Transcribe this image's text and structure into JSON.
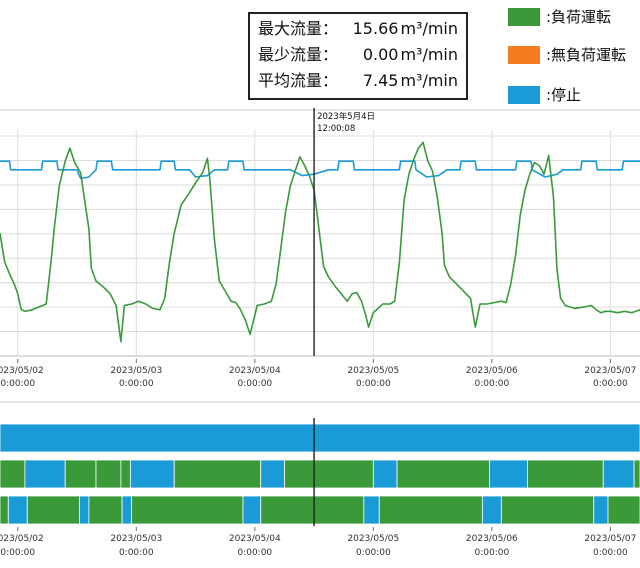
{
  "stats": {
    "max_label": "最大流量：",
    "max_value": "15.66",
    "min_label": "最少流量：",
    "min_value": "0.00",
    "avg_label": "平均流量：",
    "avg_value": "7.45",
    "unit": "m³/min"
  },
  "legend": [
    {
      "label": ":負荷運転",
      "color": "#3a9a3a"
    },
    {
      "label": ":無負荷運転",
      "color": "#f57d1f"
    },
    {
      "label": ":停止",
      "color": "#1a9ad6"
    }
  ],
  "cursor": {
    "date_label": "2023年5月4日",
    "time_label": "12:00:08"
  },
  "colors": {
    "load": "#3a9a3a",
    "unload": "#f57d1f",
    "stop": "#1a9ad6",
    "cursor": "#222222",
    "grid": "#dcdcdc"
  },
  "chart_data": {
    "type": "line",
    "x_ticks": [
      {
        "date": "2023/05/02",
        "time": "0:00:00"
      },
      {
        "date": "2023/05/03",
        "time": "0:00:00"
      },
      {
        "date": "2023/05/04",
        "time": "0:00:00"
      },
      {
        "date": "2023/05/05",
        "time": "0:00:00"
      },
      {
        "date": "2023/05/06",
        "time": "0:00:00"
      },
      {
        "date": "2023/05/07",
        "time": "0:00:00"
      }
    ],
    "x_days": [
      1.85,
      7.25
    ],
    "cursor_day": 4.5,
    "y_range": [
      0,
      15.66
    ],
    "flow_green": [
      [
        1.85,
        8.5
      ],
      [
        1.89,
        6.5
      ],
      [
        1.94,
        5.5
      ],
      [
        1.97,
        5.0
      ],
      [
        2.0,
        4.3
      ],
      [
        2.03,
        3.2
      ],
      [
        2.06,
        3.1
      ],
      [
        2.12,
        3.2
      ],
      [
        2.18,
        3.4
      ],
      [
        2.24,
        3.6
      ],
      [
        2.28,
        6.5
      ],
      [
        2.31,
        9.0
      ],
      [
        2.35,
        11.8
      ],
      [
        2.4,
        13.5
      ],
      [
        2.44,
        14.4
      ],
      [
        2.48,
        13.4
      ],
      [
        2.53,
        12.7
      ],
      [
        2.57,
        10.5
      ],
      [
        2.6,
        8.8
      ],
      [
        2.62,
        6.1
      ],
      [
        2.66,
        5.2
      ],
      [
        2.72,
        4.8
      ],
      [
        2.78,
        4.3
      ],
      [
        2.83,
        3.5
      ],
      [
        2.87,
        1.0
      ],
      [
        2.9,
        3.5
      ],
      [
        2.96,
        3.6
      ],
      [
        3.02,
        3.8
      ],
      [
        3.08,
        3.6
      ],
      [
        3.14,
        3.3
      ],
      [
        3.2,
        3.2
      ],
      [
        3.24,
        4.0
      ],
      [
        3.28,
        6.5
      ],
      [
        3.32,
        8.5
      ],
      [
        3.38,
        10.5
      ],
      [
        3.44,
        11.2
      ],
      [
        3.5,
        12.0
      ],
      [
        3.56,
        12.7
      ],
      [
        3.6,
        13.7
      ],
      [
        3.62,
        12.3
      ],
      [
        3.66,
        8.0
      ],
      [
        3.7,
        5.2
      ],
      [
        3.75,
        4.5
      ],
      [
        3.8,
        3.8
      ],
      [
        3.84,
        3.7
      ],
      [
        3.88,
        3.2
      ],
      [
        3.92,
        2.5
      ],
      [
        3.96,
        1.5
      ],
      [
        4.02,
        3.5
      ],
      [
        4.08,
        3.6
      ],
      [
        4.14,
        3.8
      ],
      [
        4.18,
        5.0
      ],
      [
        4.22,
        7.5
      ],
      [
        4.26,
        10.0
      ],
      [
        4.3,
        11.8
      ],
      [
        4.34,
        12.8
      ],
      [
        4.38,
        13.8
      ],
      [
        4.42,
        13.2
      ],
      [
        4.46,
        12.5
      ],
      [
        4.5,
        11.5
      ],
      [
        4.55,
        8.2
      ],
      [
        4.58,
        6.2
      ],
      [
        4.62,
        5.5
      ],
      [
        4.68,
        4.8
      ],
      [
        4.74,
        4.2
      ],
      [
        4.78,
        3.8
      ],
      [
        4.82,
        4.3
      ],
      [
        4.86,
        4.4
      ],
      [
        4.9,
        3.8
      ],
      [
        4.93,
        3.0
      ],
      [
        4.96,
        2.0
      ],
      [
        5.0,
        3.0
      ],
      [
        5.08,
        3.6
      ],
      [
        5.14,
        3.6
      ],
      [
        5.18,
        3.8
      ],
      [
        5.22,
        6.5
      ],
      [
        5.26,
        10.8
      ],
      [
        5.3,
        12.6
      ],
      [
        5.34,
        13.6
      ],
      [
        5.38,
        14.4
      ],
      [
        5.42,
        14.8
      ],
      [
        5.46,
        13.5
      ],
      [
        5.5,
        12.8
      ],
      [
        5.54,
        11.0
      ],
      [
        5.58,
        8.5
      ],
      [
        5.6,
        6.3
      ],
      [
        5.64,
        5.5
      ],
      [
        5.7,
        5.0
      ],
      [
        5.76,
        4.5
      ],
      [
        5.82,
        4.0
      ],
      [
        5.86,
        2.0
      ],
      [
        5.9,
        3.6
      ],
      [
        5.96,
        3.6
      ],
      [
        6.02,
        3.7
      ],
      [
        6.08,
        3.8
      ],
      [
        6.12,
        3.7
      ],
      [
        6.16,
        5.0
      ],
      [
        6.2,
        7.0
      ],
      [
        6.24,
        9.8
      ],
      [
        6.28,
        11.5
      ],
      [
        6.32,
        12.6
      ],
      [
        6.36,
        13.4
      ],
      [
        6.4,
        13.2
      ],
      [
        6.44,
        12.6
      ],
      [
        6.48,
        13.9
      ],
      [
        6.52,
        11.0
      ],
      [
        6.55,
        6.0
      ],
      [
        6.58,
        4.0
      ],
      [
        6.62,
        3.5
      ],
      [
        6.7,
        3.3
      ],
      [
        6.78,
        3.4
      ],
      [
        6.84,
        3.5
      ],
      [
        6.88,
        3.2
      ],
      [
        6.92,
        3.0
      ],
      [
        6.96,
        3.1
      ],
      [
        7.0,
        3.1
      ],
      [
        7.06,
        3.0
      ],
      [
        7.12,
        3.1
      ],
      [
        7.18,
        3.0
      ],
      [
        7.25,
        3.2
      ]
    ],
    "flow_blue": [
      [
        1.85,
        13.5
      ],
      [
        1.93,
        13.5
      ],
      [
        1.94,
        12.9
      ],
      [
        2.2,
        12.9
      ],
      [
        2.21,
        13.5
      ],
      [
        2.33,
        13.5
      ],
      [
        2.34,
        12.9
      ],
      [
        2.5,
        12.9
      ],
      [
        2.53,
        12.3
      ],
      [
        2.6,
        12.4
      ],
      [
        2.66,
        12.9
      ],
      [
        2.67,
        13.5
      ],
      [
        2.79,
        13.5
      ],
      [
        2.8,
        12.9
      ],
      [
        3.2,
        12.9
      ],
      [
        3.21,
        13.5
      ],
      [
        3.32,
        13.5
      ],
      [
        3.33,
        12.9
      ],
      [
        3.45,
        12.9
      ],
      [
        3.5,
        12.4
      ],
      [
        3.6,
        12.5
      ],
      [
        3.66,
        12.9
      ],
      [
        3.77,
        12.9
      ],
      [
        3.78,
        13.5
      ],
      [
        3.9,
        13.5
      ],
      [
        3.91,
        12.9
      ],
      [
        4.05,
        12.9
      ],
      [
        4.3,
        12.9
      ],
      [
        4.4,
        12.5
      ],
      [
        4.5,
        12.6
      ],
      [
        4.62,
        12.9
      ],
      [
        4.7,
        12.9
      ],
      [
        4.71,
        13.5
      ],
      [
        4.83,
        13.5
      ],
      [
        4.84,
        12.9
      ],
      [
        5.22,
        12.9
      ],
      [
        5.23,
        13.5
      ],
      [
        5.35,
        13.5
      ],
      [
        5.36,
        12.9
      ],
      [
        5.45,
        12.4
      ],
      [
        5.55,
        12.5
      ],
      [
        5.62,
        12.9
      ],
      [
        5.73,
        12.9
      ],
      [
        5.74,
        13.5
      ],
      [
        5.86,
        13.5
      ],
      [
        5.87,
        12.9
      ],
      [
        6.2,
        12.9
      ],
      [
        6.21,
        13.5
      ],
      [
        6.33,
        13.5
      ],
      [
        6.34,
        12.9
      ],
      [
        6.45,
        12.4
      ],
      [
        6.55,
        12.6
      ],
      [
        6.6,
        12.9
      ],
      [
        6.75,
        12.9
      ],
      [
        6.76,
        13.5
      ],
      [
        6.88,
        13.5
      ],
      [
        6.89,
        12.9
      ],
      [
        7.1,
        12.9
      ],
      [
        7.11,
        13.5
      ],
      [
        7.25,
        13.5
      ]
    ],
    "timeline_rows": [
      {
        "segments": [
          [
            "stop",
            1.85,
            7.25
          ]
        ]
      },
      {
        "segments": [
          [
            "load",
            1.85,
            2.06
          ],
          [
            "stop",
            2.06,
            2.4
          ],
          [
            "load",
            2.4,
            2.66
          ],
          [
            "load",
            2.66,
            2.87
          ],
          [
            "load",
            2.87,
            2.95
          ],
          [
            "stop",
            2.95,
            3.32
          ],
          [
            "load",
            3.32,
            4.05
          ],
          [
            "stop",
            4.05,
            4.25
          ],
          [
            "load",
            4.25,
            5.0
          ],
          [
            "stop",
            5.0,
            5.2
          ],
          [
            "load",
            5.2,
            5.98
          ],
          [
            "stop",
            5.98,
            6.3
          ],
          [
            "load",
            6.3,
            6.94
          ],
          [
            "stop",
            6.94,
            7.2
          ],
          [
            "load",
            7.2,
            7.25
          ]
        ]
      },
      {
        "segments": [
          [
            "load",
            1.85,
            1.92
          ],
          [
            "stop",
            1.92,
            2.08
          ],
          [
            "load",
            2.08,
            2.52
          ],
          [
            "stop",
            2.52,
            2.6
          ],
          [
            "load",
            2.6,
            2.88
          ],
          [
            "stop",
            2.88,
            2.96
          ],
          [
            "load",
            2.96,
            3.9
          ],
          [
            "stop",
            3.9,
            4.05
          ],
          [
            "load",
            4.05,
            4.92
          ],
          [
            "stop",
            4.92,
            5.05
          ],
          [
            "load",
            5.05,
            5.92
          ],
          [
            "stop",
            5.92,
            6.08
          ],
          [
            "load",
            6.08,
            6.86
          ],
          [
            "stop",
            6.86,
            6.98
          ],
          [
            "load",
            6.98,
            7.25
          ]
        ]
      }
    ]
  }
}
